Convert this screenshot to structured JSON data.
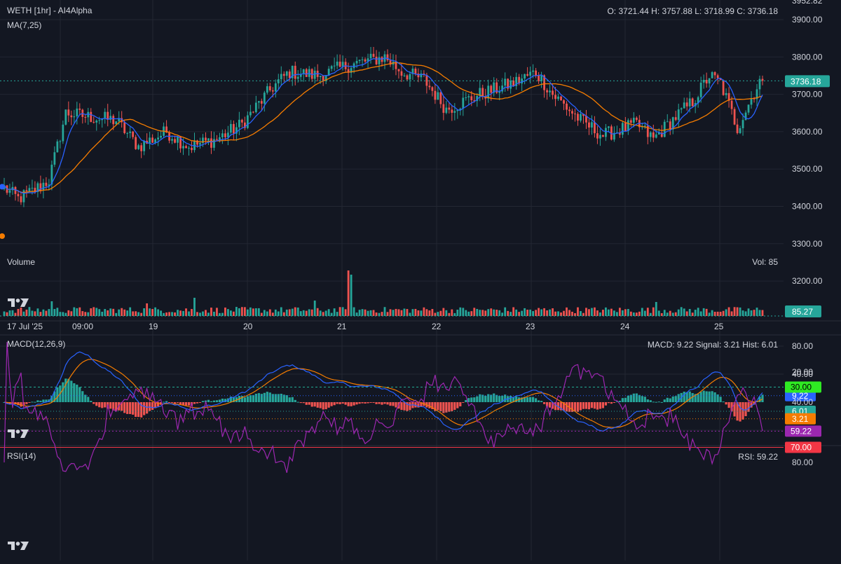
{
  "header": {
    "title": "WETH [1hr] - AI4Alpha",
    "ma_label": "MA(7,25)",
    "ohlc": "O: 3721.44 H: 3757.88 L: 3718.99 C: 3736.18"
  },
  "volume_pane": {
    "label": "Volume",
    "readout": "Vol: 85",
    "last_tag": "85.27"
  },
  "macd_pane": {
    "label": "MACD(12,26,9)",
    "readout": "MACD: 9.22 Signal: 3.21 Hist: 6.01",
    "tags": {
      "macd": "9.22",
      "hist": "6.01",
      "signal": "3.21"
    }
  },
  "rsi_pane": {
    "label": "RSI(14)",
    "readout": "RSI: 59.22",
    "tags": {
      "upper": "70.00",
      "value": "59.22",
      "lower": "30.00"
    }
  },
  "last_price_tag": "3736.18",
  "colors": {
    "background": "#131722",
    "grid": "#232733",
    "text": "#d1d4dc",
    "up": "#26a69a",
    "down": "#ef5350",
    "ma7": "#2962ff",
    "ma25": "#f57c00",
    "macd": "#2962ff",
    "signal": "#f57c00",
    "rsi": "#9c27b0",
    "rsi_upper": "#f23645",
    "rsi_lower": "#22ab94"
  },
  "icons": {
    "logo": "tradingview-logo-icon"
  },
  "chart_data": [
    {
      "type": "candlestick",
      "title": "WETH [1hr] - AI4Alpha",
      "y_ticks": [
        "3952.82",
        "3900.00",
        "3800.00",
        "3700.00",
        "3600.00",
        "3500.00",
        "3400.00",
        "3300.00",
        "3200.00"
      ],
      "ylim": [
        3180,
        3953
      ],
      "x_ticks": [
        "17 Jul '25",
        "09:00",
        "19",
        "20",
        "21",
        "22",
        "23",
        "24",
        "25"
      ],
      "grid": true,
      "last_close": 3736.18,
      "series": [
        {
          "name": "MA(7,25)",
          "role": "ma7"
        },
        {
          "name": "MA(7,25)",
          "role": "ma25"
        }
      ],
      "close_keyframes": [
        [
          0,
          3450
        ],
        [
          5,
          3420
        ],
        [
          10,
          3440
        ],
        [
          16,
          3470
        ],
        [
          22,
          3650
        ],
        [
          30,
          3640
        ],
        [
          40,
          3630
        ],
        [
          48,
          3560
        ],
        [
          58,
          3600
        ],
        [
          66,
          3560
        ],
        [
          76,
          3580
        ],
        [
          85,
          3620
        ],
        [
          96,
          3720
        ],
        [
          102,
          3760
        ],
        [
          112,
          3750
        ],
        [
          124,
          3780
        ],
        [
          136,
          3800
        ],
        [
          142,
          3760
        ],
        [
          150,
          3740
        ],
        [
          158,
          3660
        ],
        [
          170,
          3700
        ],
        [
          182,
          3730
        ],
        [
          190,
          3760
        ],
        [
          196,
          3700
        ],
        [
          206,
          3630
        ],
        [
          214,
          3590
        ],
        [
          226,
          3620
        ],
        [
          232,
          3580
        ],
        [
          240,
          3640
        ],
        [
          246,
          3680
        ],
        [
          252,
          3750
        ],
        [
          256,
          3730
        ],
        [
          262,
          3610
        ],
        [
          270,
          3736.18
        ]
      ]
    },
    {
      "type": "bar",
      "title": "Volume",
      "last_value": 85.27,
      "spike_bars": [
        [
          68,
          2.6
        ],
        [
          123,
          6.5
        ],
        [
          124,
          5.9
        ],
        [
          17,
          2.1
        ],
        [
          51,
          1.8
        ],
        [
          233,
          2.0
        ],
        [
          111,
          2.2
        ]
      ]
    },
    {
      "type": "line",
      "title": "MACD(12,26,9)",
      "y_ticks": [
        "80.00",
        "40.00",
        "-40.00"
      ],
      "ylim": [
        -45,
        100
      ],
      "last": {
        "macd": 9.22,
        "signal": 3.21,
        "hist": 6.01
      },
      "series": [
        {
          "name": "MACD",
          "role": "macd"
        },
        {
          "name": "Signal",
          "role": "signal"
        },
        {
          "name": "Hist",
          "role": "hist"
        }
      ]
    },
    {
      "type": "line",
      "title": "RSI(14)",
      "y_ticks": [
        "80.00",
        "40.00",
        "20.00"
      ],
      "ylim": [
        15,
        88
      ],
      "levels": [
        70,
        30
      ],
      "last": 59.22,
      "series": [
        {
          "name": "RSI",
          "role": "rsi"
        }
      ]
    }
  ]
}
